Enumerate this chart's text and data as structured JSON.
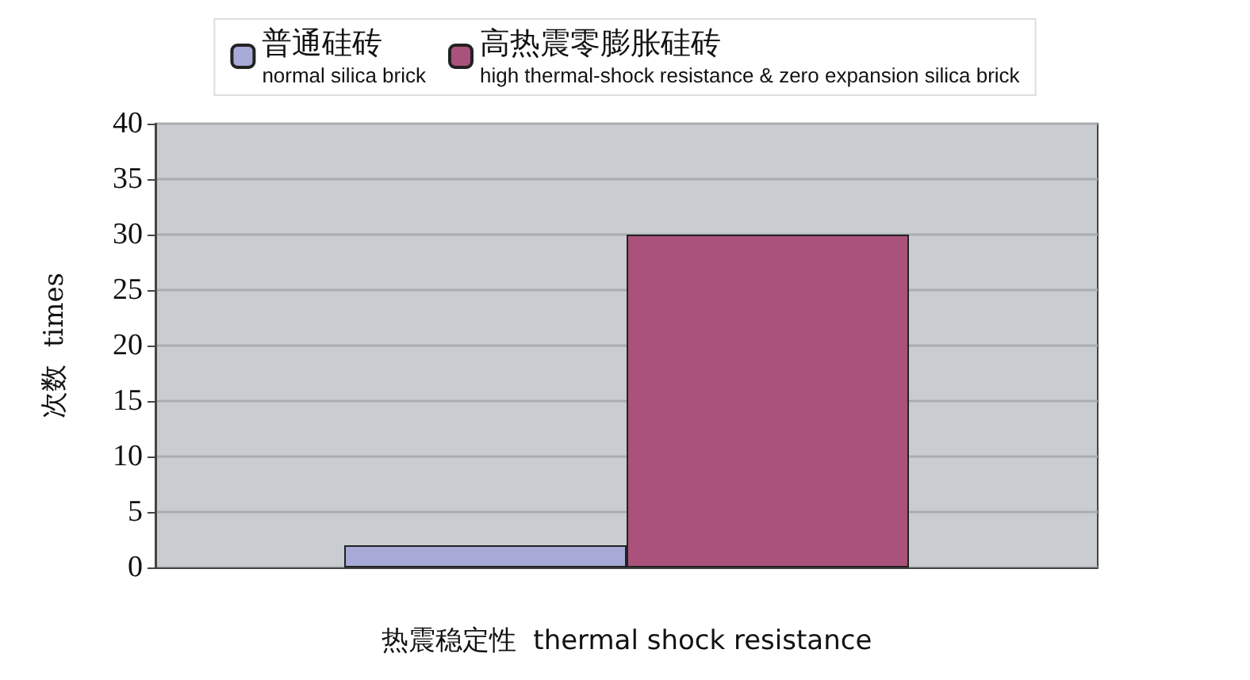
{
  "chart_data": {
    "type": "bar",
    "xlabel": "热震稳定性  thermal shock resistance",
    "ylabel": "次数  times",
    "categories": [
      null
    ],
    "series": [
      {
        "name": "普通硅砖\nnormal silica brick",
        "color": "#a7aad6",
        "values": [
          2
        ]
      },
      {
        "name": "高热震零膨胀硅砖\nhigh thermal-shock resistance & zero expansion silica brick",
        "color": "#ab527c",
        "values": [
          30
        ]
      }
    ],
    "ylim": [
      0,
      40
    ],
    "yticks": [
      0,
      5,
      10,
      15,
      20,
      25,
      30,
      35,
      40
    ],
    "grid": "y",
    "legend": "top"
  }
}
